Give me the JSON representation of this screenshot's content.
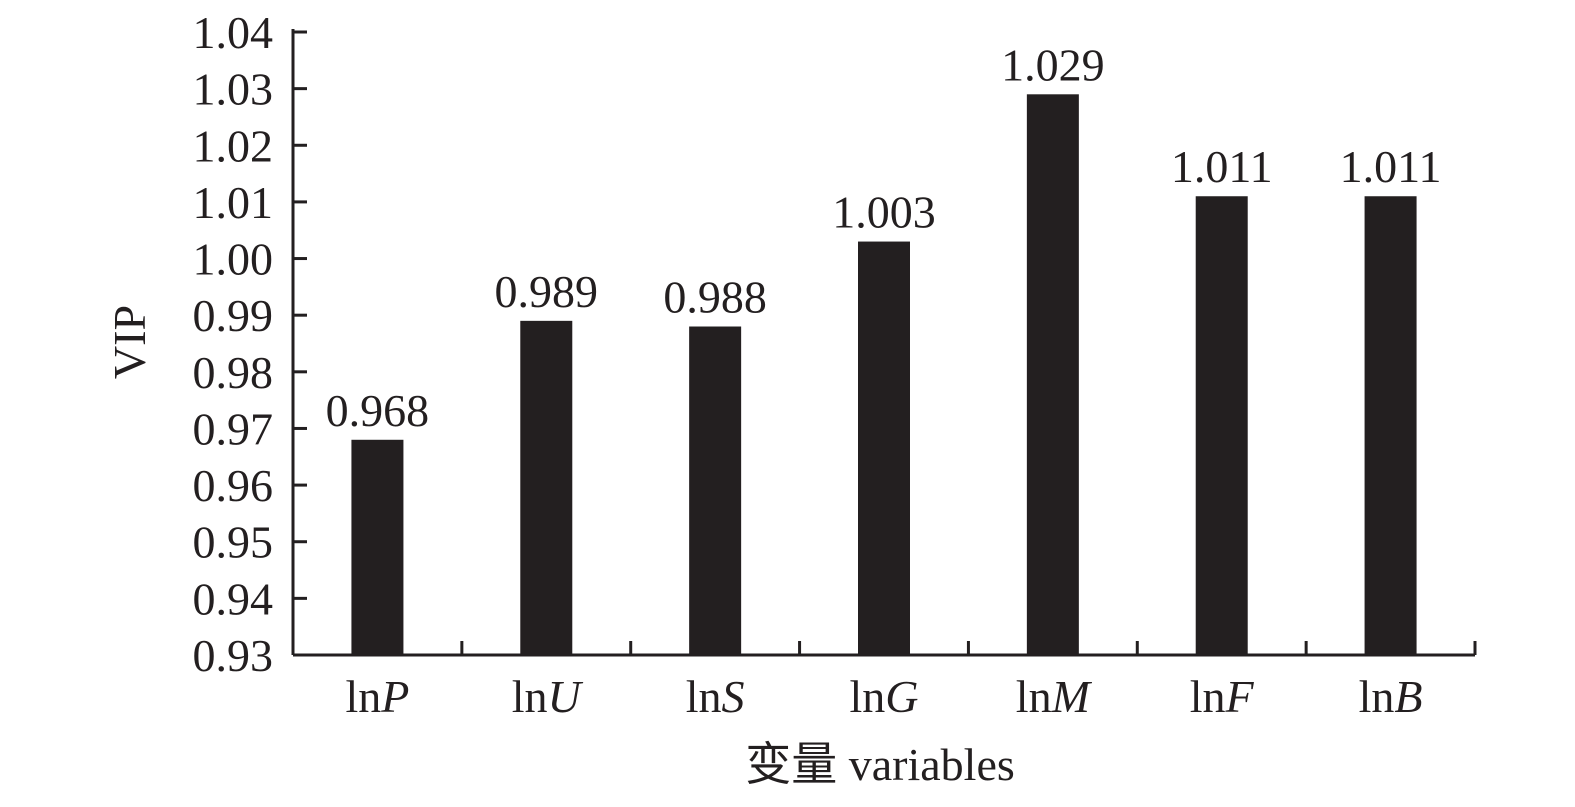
{
  "chart_data": {
    "type": "bar",
    "categories": [
      {
        "prefix": "ln",
        "var": "P"
      },
      {
        "prefix": "ln",
        "var": "U"
      },
      {
        "prefix": "ln",
        "var": "S"
      },
      {
        "prefix": "ln",
        "var": "G"
      },
      {
        "prefix": "ln",
        "var": "M"
      },
      {
        "prefix": "ln",
        "var": "F"
      },
      {
        "prefix": "ln",
        "var": "B"
      }
    ],
    "values": [
      0.968,
      0.989,
      0.988,
      1.003,
      1.029,
      1.011,
      1.011
    ],
    "data_labels": [
      "0.968",
      "0.989",
      "0.988",
      "1.003",
      "1.029",
      "1.011",
      "1.011"
    ],
    "xlabel": "变量 variables",
    "ylabel": "VIP",
    "ylim": [
      0.93,
      1.04
    ],
    "yticks": [
      "0.93",
      "0.94",
      "0.95",
      "0.96",
      "0.97",
      "0.98",
      "0.99",
      "1.00",
      "1.01",
      "1.02",
      "1.03",
      "1.04"
    ],
    "grid": false,
    "legend": "none",
    "bar_color": "#231f20"
  }
}
